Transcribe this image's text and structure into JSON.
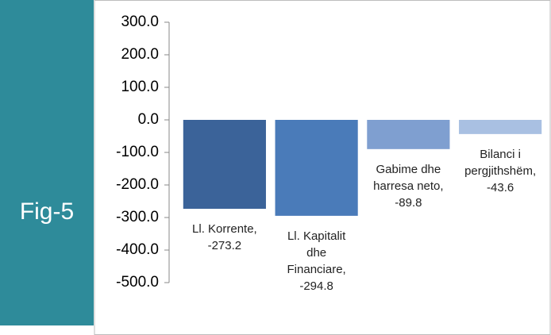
{
  "side_label": "Fig-5",
  "chart_data": {
    "type": "bar",
    "values": [
      -273.2,
      -294.8,
      -89.8,
      -43.6
    ],
    "value_labels": [
      "Ll. Korrente, -273.2",
      "Ll. Kapitalit dhe Financiare, -294.8",
      "Gabime dhe harresa neto, -89.8",
      "Bilanci i pergjithshëm, -43.6"
    ],
    "colors": [
      "#3b6399",
      "#4a7bb9",
      "#7f9fd0",
      "#a9c0e2"
    ],
    "ylim": [
      -500,
      300
    ],
    "yticks": [
      {
        "value": 300,
        "label": "300.0"
      },
      {
        "value": 200,
        "label": "200.0"
      },
      {
        "value": 100,
        "label": "100.0"
      },
      {
        "value": 0,
        "label": "0.0"
      },
      {
        "value": -100,
        "label": "-100.0"
      },
      {
        "value": -200,
        "label": "-200.0"
      },
      {
        "value": -300,
        "label": "-300.0"
      },
      {
        "value": -400,
        "label": "-400.0"
      },
      {
        "value": -500,
        "label": "-500.0"
      }
    ],
    "grid": false
  }
}
